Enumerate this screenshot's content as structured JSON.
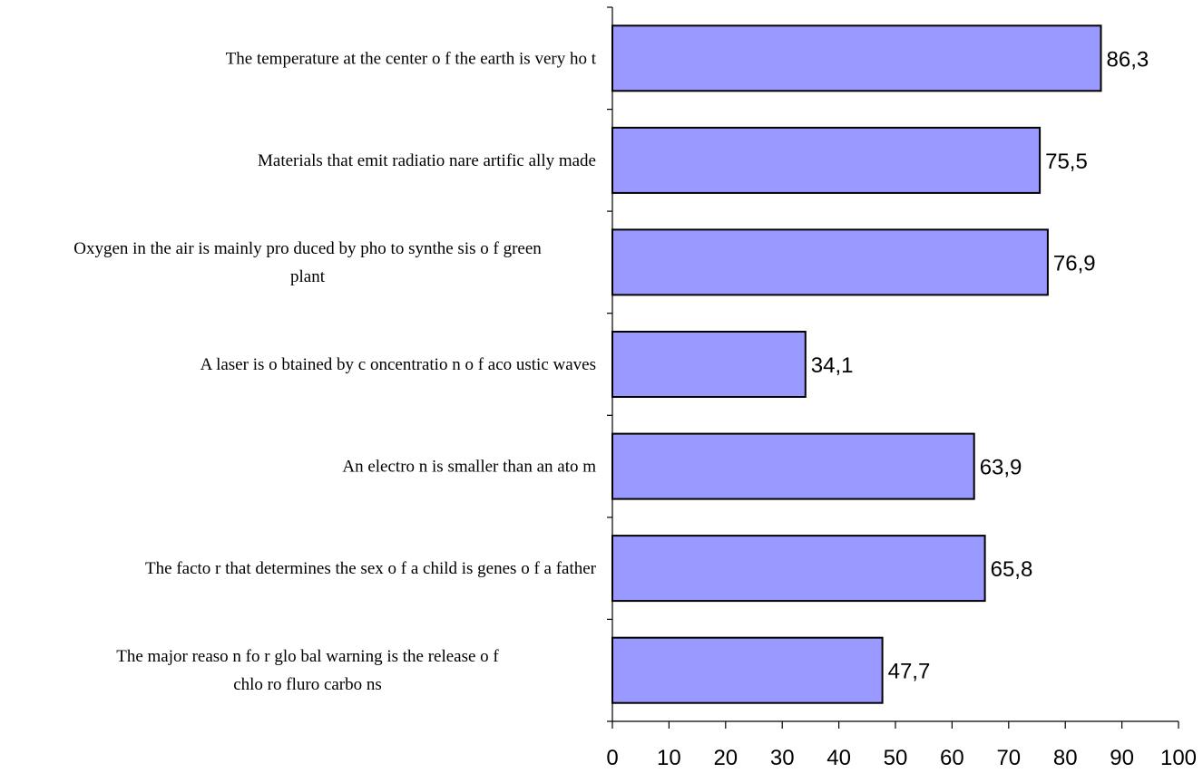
{
  "chart_data": {
    "type": "bar",
    "orientation": "horizontal",
    "title": "",
    "xlabel": "",
    "ylabel": "",
    "categories": [
      "The temperature at the center of the earth is very hot",
      "Materials that emit radiationare artifically made",
      "Oxygen in the air is mainly produced by photosynthesis of green plant",
      "A laser is obtained by concentration of acoustic waves",
      "An electron is smaller than an atom",
      "The factor that determines the sex of a child is genes of a father",
      "The major reason for global warning is the release of chlorofluorocarbons"
    ],
    "category_lines": [
      [
        "The temperature at the center o f the earth is very ho t"
      ],
      [
        "Materials that emit radiatio nare artific ally made"
      ],
      [
        "Oxygen in the air is mainly pro duced by pho to synthe sis o f green",
        "plant"
      ],
      [
        "A laser is o btained by c oncentratio n o f aco ustic waves"
      ],
      [
        "An electro n is smaller than an ato m"
      ],
      [
        "The facto r that determines the sex o f a child is genes o f a father"
      ],
      [
        "The major reaso n fo r glo bal warning is the release o f",
        "chlo ro fluro carbo ns"
      ]
    ],
    "values": [
      86.3,
      75.5,
      76.9,
      34.1,
      63.9,
      65.8,
      47.7
    ],
    "value_labels": [
      "86,3",
      "75,5",
      "76,9",
      "34,1",
      "63,9",
      "65,8",
      "47,7"
    ],
    "xlim": [
      0,
      100
    ],
    "xticks": [
      0,
      10,
      20,
      30,
      40,
      50,
      60,
      70,
      80,
      90,
      100
    ],
    "xtick_labels": [
      "0",
      "10",
      "20",
      "30",
      "40",
      "50",
      "60",
      "70",
      "80",
      "90",
      "100"
    ],
    "grid": false,
    "legend": "none",
    "bar_color": "#9999ff",
    "bar_edge_color": "#000000"
  }
}
